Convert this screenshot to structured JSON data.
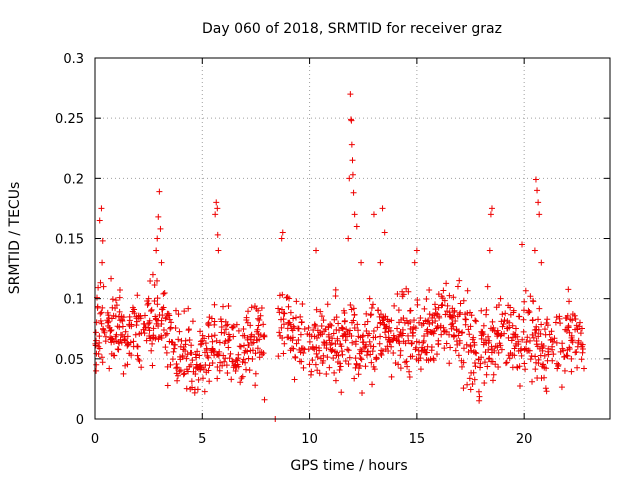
{
  "chart_data": {
    "type": "scatter",
    "title": "Day 060 of 2018, SRMTID for receiver graz",
    "xlabel": "GPS time / hours",
    "ylabel": "SRMTID / TECUs",
    "xlim": [
      0,
      24
    ],
    "ylim": [
      0,
      0.3
    ],
    "x_ticks": [
      0,
      5,
      10,
      15,
      20
    ],
    "x_tick_labels": [
      "0",
      "5",
      "10",
      "15",
      "20"
    ],
    "y_ticks": [
      0,
      0.05,
      0.1,
      0.15,
      0.2,
      0.25,
      0.3
    ],
    "y_tick_labels": [
      "0",
      "0.05",
      "0.1",
      "0.15",
      "0.2",
      "0.25",
      "0.3"
    ],
    "grid": true,
    "marker": "+",
    "color": "#ee0000",
    "series": [
      {
        "name": "SRMTID",
        "note": "Dense cloud of points every ~30 s from 0 to ~22.8 h with a data gap between ~7.9 h and ~8.5 h; representative points listed plus generated background following the band 0.03-0.10 TECU.",
        "x": [
          0.05,
          0.15,
          0.22,
          0.3,
          0.33,
          0.36,
          0.4,
          0.6,
          1.0,
          1.4,
          1.9,
          2.5,
          2.7,
          2.85,
          2.9,
          2.95,
          3.0,
          3.05,
          3.1,
          3.5,
          4.0,
          4.5,
          5.0,
          5.3,
          5.6,
          5.65,
          5.7,
          5.72,
          5.75,
          6.2,
          6.8,
          7.3,
          7.6,
          7.9,
          8.4,
          8.7,
          8.75,
          9.0,
          9.5,
          10.0,
          10.3,
          10.9,
          11.3,
          11.6,
          11.8,
          11.85,
          11.9,
          11.93,
          11.95,
          11.97,
          12.0,
          12.02,
          12.05,
          12.1,
          12.2,
          12.4,
          12.8,
          13.0,
          13.3,
          13.4,
          13.5,
          13.8,
          14.2,
          14.6,
          14.9,
          15.0,
          15.1,
          15.5,
          16.0,
          16.5,
          17.0,
          17.5,
          18.0,
          18.3,
          18.4,
          18.45,
          18.5,
          18.9,
          19.3,
          19.6,
          19.9,
          20.2,
          20.5,
          20.55,
          20.6,
          20.65,
          20.7,
          20.8,
          21.0,
          21.3,
          21.6,
          21.9,
          22.2,
          22.5,
          22.7
        ],
        "y": [
          0.04,
          0.06,
          0.165,
          0.175,
          0.13,
          0.148,
          0.11,
          0.08,
          0.07,
          0.065,
          0.07,
          0.1,
          0.12,
          0.14,
          0.15,
          0.168,
          0.189,
          0.158,
          0.13,
          0.075,
          0.06,
          0.055,
          0.065,
          0.08,
          0.17,
          0.18,
          0.175,
          0.153,
          0.14,
          0.065,
          0.06,
          0.07,
          0.09,
          0.016,
          0.0,
          0.15,
          0.155,
          0.08,
          0.075,
          0.07,
          0.14,
          0.07,
          0.065,
          0.09,
          0.15,
          0.2,
          0.27,
          0.249,
          0.248,
          0.228,
          0.215,
          0.203,
          0.188,
          0.17,
          0.16,
          0.13,
          0.1,
          0.17,
          0.13,
          0.175,
          0.155,
          0.06,
          0.07,
          0.065,
          0.13,
          0.14,
          0.08,
          0.06,
          0.065,
          0.07,
          0.065,
          0.06,
          0.09,
          0.11,
          0.14,
          0.17,
          0.175,
          0.1,
          0.08,
          0.07,
          0.145,
          0.09,
          0.14,
          0.199,
          0.19,
          0.18,
          0.17,
          0.13,
          0.07,
          0.06,
          0.045,
          0.04,
          0.05,
          0.06,
          0.06
        ]
      }
    ]
  }
}
